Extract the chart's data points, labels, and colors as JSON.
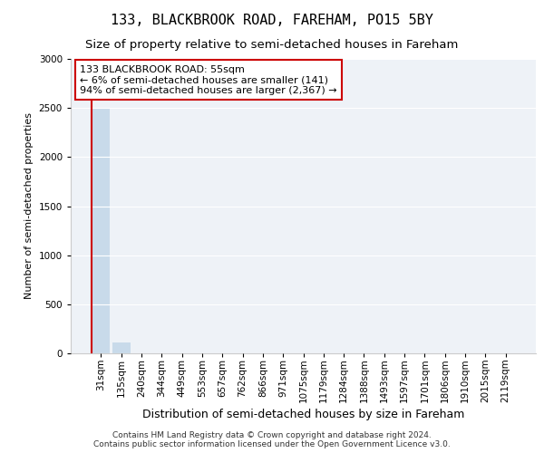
{
  "title": "133, BLACKBROOK ROAD, FAREHAM, PO15 5BY",
  "subtitle": "Size of property relative to semi-detached houses in Fareham",
  "xlabel": "Distribution of semi-detached houses by size in Fareham",
  "ylabel": "Number of semi-detached properties",
  "categories": [
    "31sqm",
    "135sqm",
    "240sqm",
    "344sqm",
    "449sqm",
    "553sqm",
    "657sqm",
    "762sqm",
    "866sqm",
    "971sqm",
    "1075sqm",
    "1179sqm",
    "1284sqm",
    "1388sqm",
    "1493sqm",
    "1597sqm",
    "1701sqm",
    "1806sqm",
    "1910sqm",
    "2015sqm",
    "2119sqm"
  ],
  "values": [
    2490,
    108,
    4,
    2,
    1,
    0,
    0,
    0,
    0,
    0,
    2,
    0,
    0,
    0,
    0,
    0,
    0,
    0,
    0,
    0,
    0
  ],
  "bar_color": "#c8daea",
  "marker_line_color": "#cc0000",
  "marker_bar_index": 0,
  "ylim": [
    0,
    3000
  ],
  "yticks": [
    0,
    500,
    1000,
    1500,
    2000,
    2500,
    3000
  ],
  "annotation_text": "133 BLACKBROOK ROAD: 55sqm\n← 6% of semi-detached houses are smaller (141)\n94% of semi-detached houses are larger (2,367) →",
  "footer_line1": "Contains HM Land Registry data © Crown copyright and database right 2024.",
  "footer_line2": "Contains public sector information licensed under the Open Government Licence v3.0.",
  "background_color": "#eef2f7",
  "grid_color": "#ffffff",
  "title_fontsize": 11,
  "subtitle_fontsize": 9.5,
  "xlabel_fontsize": 9,
  "ylabel_fontsize": 8,
  "tick_fontsize": 7.5,
  "annotation_fontsize": 8,
  "footer_fontsize": 6.5
}
